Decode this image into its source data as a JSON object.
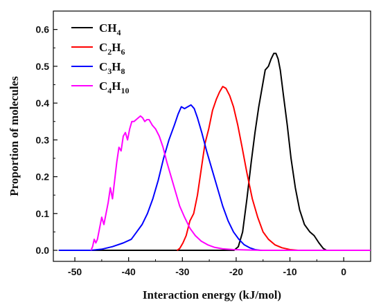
{
  "chart_data": {
    "type": "line",
    "xlabel": "Interaction energy (kJ/mol)",
    "ylabel": "Proportion of molecules",
    "xlim": [
      -54,
      5
    ],
    "ylim": [
      -0.03,
      0.65
    ],
    "xticks": [
      -50,
      -40,
      -30,
      -20,
      -10,
      0
    ],
    "yticks": [
      0.0,
      0.1,
      0.2,
      0.3,
      0.4,
      0.5,
      0.6
    ],
    "ytick_labels": [
      "0.0",
      "0.1",
      "0.2",
      "0.3",
      "0.4",
      "0.5",
      "0.6"
    ],
    "grid": false,
    "legend_position": "top-left",
    "series": [
      {
        "name": "CH4",
        "label_base": "CH",
        "label_sub": "4",
        "color": "#000000",
        "points": [
          [
            -53,
            0
          ],
          [
            -22,
            0
          ],
          [
            -20.4,
            0
          ],
          [
            -19.6,
            0.01
          ],
          [
            -18.8,
            0.05
          ],
          [
            -18,
            0.14
          ],
          [
            -17.2,
            0.24
          ],
          [
            -16.5,
            0.32
          ],
          [
            -15.8,
            0.39
          ],
          [
            -15.2,
            0.44
          ],
          [
            -14.6,
            0.49
          ],
          [
            -14,
            0.5
          ],
          [
            -13.5,
            0.52
          ],
          [
            -13,
            0.535
          ],
          [
            -12.6,
            0.535
          ],
          [
            -12.2,
            0.52
          ],
          [
            -11.8,
            0.49
          ],
          [
            -11.2,
            0.42
          ],
          [
            -10.5,
            0.34
          ],
          [
            -9.8,
            0.25
          ],
          [
            -9,
            0.17
          ],
          [
            -8.2,
            0.11
          ],
          [
            -7.3,
            0.07
          ],
          [
            -6.3,
            0.05
          ],
          [
            -5.5,
            0.04
          ],
          [
            -4.6,
            0.02
          ],
          [
            -3.8,
            0.005
          ],
          [
            -3.2,
            0
          ],
          [
            5,
            0
          ]
        ]
      },
      {
        "name": "C2H6",
        "label_base": "C",
        "label_sub_1": "2",
        "label_mid": "H",
        "label_sub": "6",
        "color": "#ff0000",
        "points": [
          [
            -31,
            0
          ],
          [
            -30.5,
            0.005
          ],
          [
            -29.9,
            0.02
          ],
          [
            -29.3,
            0.04
          ],
          [
            -28.6,
            0.08
          ],
          [
            -27.9,
            0.1
          ],
          [
            -27.2,
            0.15
          ],
          [
            -26.5,
            0.22
          ],
          [
            -25.8,
            0.29
          ],
          [
            -25.1,
            0.33
          ],
          [
            -24.4,
            0.38
          ],
          [
            -23.7,
            0.41
          ],
          [
            -23.1,
            0.43
          ],
          [
            -22.5,
            0.445
          ],
          [
            -21.9,
            0.44
          ],
          [
            -21.2,
            0.42
          ],
          [
            -20.5,
            0.39
          ],
          [
            -19.7,
            0.34
          ],
          [
            -18.9,
            0.28
          ],
          [
            -18,
            0.21
          ],
          [
            -17,
            0.14
          ],
          [
            -16,
            0.09
          ],
          [
            -15,
            0.05
          ],
          [
            -14,
            0.03
          ],
          [
            -12.8,
            0.015
          ],
          [
            -11.5,
            0.007
          ],
          [
            -10,
            0.002
          ],
          [
            -8.5,
            0
          ],
          [
            5,
            0
          ]
        ]
      },
      {
        "name": "C3H8",
        "label_base": "C",
        "label_sub_1": "3",
        "label_mid": "H",
        "label_sub": "8",
        "color": "#0000ff",
        "points": [
          [
            -53,
            0
          ],
          [
            -47,
            0
          ],
          [
            -45,
            0.003
          ],
          [
            -43,
            0.01
          ],
          [
            -41,
            0.02
          ],
          [
            -39.5,
            0.03
          ],
          [
            -38.5,
            0.05
          ],
          [
            -37.5,
            0.07
          ],
          [
            -36.5,
            0.1
          ],
          [
            -35.5,
            0.14
          ],
          [
            -34.5,
            0.19
          ],
          [
            -33.5,
            0.25
          ],
          [
            -32.5,
            0.3
          ],
          [
            -31.5,
            0.34
          ],
          [
            -30.8,
            0.37
          ],
          [
            -30.2,
            0.39
          ],
          [
            -29.6,
            0.385
          ],
          [
            -29,
            0.39
          ],
          [
            -28.4,
            0.395
          ],
          [
            -27.8,
            0.385
          ],
          [
            -27.2,
            0.36
          ],
          [
            -26.4,
            0.32
          ],
          [
            -25.5,
            0.27
          ],
          [
            -24.5,
            0.22
          ],
          [
            -23.5,
            0.17
          ],
          [
            -22.5,
            0.12
          ],
          [
            -21.5,
            0.08
          ],
          [
            -20.5,
            0.05
          ],
          [
            -19.5,
            0.03
          ],
          [
            -18.5,
            0.015
          ],
          [
            -17.5,
            0.007
          ],
          [
            -16.5,
            0.002
          ],
          [
            -15.5,
            0
          ],
          [
            5,
            0
          ]
        ]
      },
      {
        "name": "C4H10",
        "label_base": "C",
        "label_sub_1": "4",
        "label_mid": "H",
        "label_sub": "10",
        "color": "#ff00ff",
        "points": [
          [
            -47,
            0
          ],
          [
            -46.7,
            0.01
          ],
          [
            -46.4,
            0.03
          ],
          [
            -46.1,
            0.02
          ],
          [
            -45.8,
            0.03
          ],
          [
            -45.4,
            0.06
          ],
          [
            -45,
            0.09
          ],
          [
            -44.6,
            0.07
          ],
          [
            -44.2,
            0.1
          ],
          [
            -43.8,
            0.13
          ],
          [
            -43.4,
            0.17
          ],
          [
            -43,
            0.14
          ],
          [
            -42.6,
            0.19
          ],
          [
            -42.2,
            0.24
          ],
          [
            -41.8,
            0.28
          ],
          [
            -41.4,
            0.27
          ],
          [
            -41,
            0.31
          ],
          [
            -40.6,
            0.32
          ],
          [
            -40.2,
            0.3
          ],
          [
            -39.8,
            0.33
          ],
          [
            -39.4,
            0.35
          ],
          [
            -39,
            0.35
          ],
          [
            -38.6,
            0.355
          ],
          [
            -38.2,
            0.36
          ],
          [
            -37.8,
            0.365
          ],
          [
            -37.4,
            0.36
          ],
          [
            -37,
            0.35
          ],
          [
            -36.6,
            0.355
          ],
          [
            -36.2,
            0.355
          ],
          [
            -35.6,
            0.34
          ],
          [
            -35,
            0.33
          ],
          [
            -34.3,
            0.31
          ],
          [
            -33.6,
            0.28
          ],
          [
            -32.9,
            0.24
          ],
          [
            -32.1,
            0.2
          ],
          [
            -31.3,
            0.16
          ],
          [
            -30.5,
            0.12
          ],
          [
            -29.6,
            0.09
          ],
          [
            -28.6,
            0.06
          ],
          [
            -27.6,
            0.04
          ],
          [
            -26.5,
            0.025
          ],
          [
            -25.3,
            0.015
          ],
          [
            -24,
            0.008
          ],
          [
            -22.5,
            0.004
          ],
          [
            -20.5,
            0.002
          ],
          [
            -18,
            0.001
          ],
          [
            -15,
            0
          ],
          [
            5,
            0
          ]
        ]
      }
    ]
  }
}
